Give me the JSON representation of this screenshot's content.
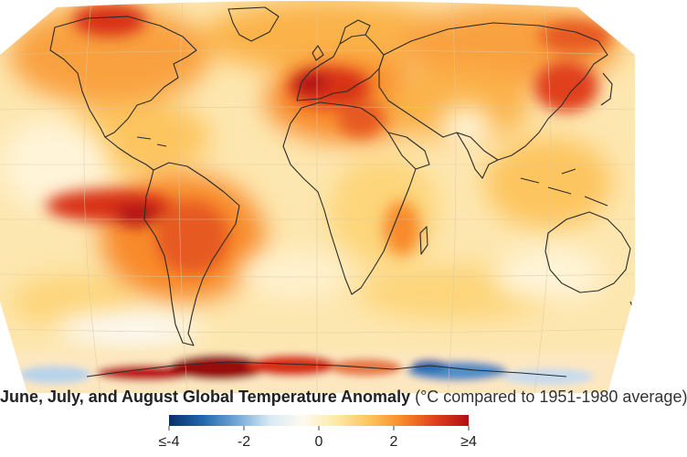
{
  "map": {
    "title_bold": "June, July, and August Global Temperature Anomaly",
    "title_rest": " (°C compared to 1951-1980 average)"
  },
  "legend": {
    "ticks": [
      {
        "value": -4,
        "label": "≤-4"
      },
      {
        "value": -2,
        "label": "-2"
      },
      {
        "value": 0,
        "label": "0"
      },
      {
        "value": 2,
        "label": "2"
      },
      {
        "value": 4,
        "label": "≥4"
      }
    ],
    "range": [
      -4,
      4
    ],
    "colors": [
      "#08306b",
      "#2166ac",
      "#6ea6d6",
      "#d7e8f4",
      "#fffaf0",
      "#fdeaa8",
      "#fdc55e",
      "#f88a2a",
      "#e0401c",
      "#b00f12"
    ]
  },
  "colors": {
    "cold": "#2166ac",
    "neutral": "#fff8e6",
    "warm": "#fbb24a",
    "hot": "#b00f12",
    "coast": "#2a2a2a"
  }
}
